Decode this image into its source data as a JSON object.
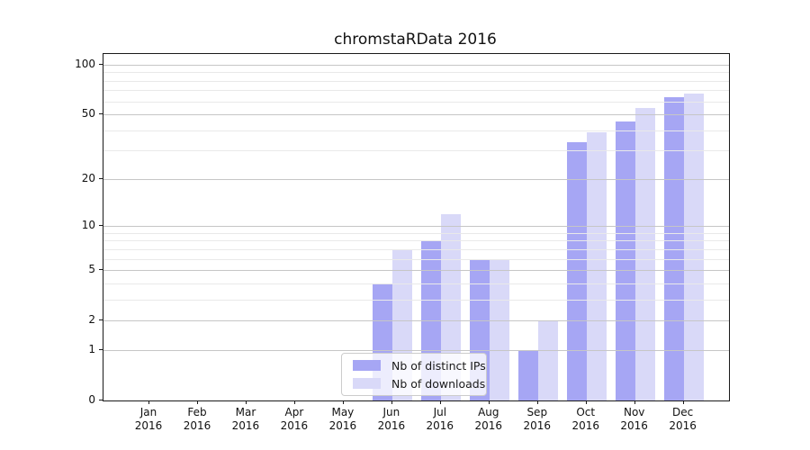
{
  "window": {
    "title": "chromstaRData 2016"
  },
  "chart_data": {
    "type": "bar",
    "title": "chromstaRData 2016",
    "xlabel": "",
    "ylabel": "",
    "year_label": "2016",
    "categories": [
      "Jan",
      "Feb",
      "Mar",
      "Apr",
      "May",
      "Jun",
      "Jul",
      "Aug",
      "Sep",
      "Oct",
      "Nov",
      "Dec"
    ],
    "series": [
      {
        "name": "Nb of distinct IPs",
        "color": "#a6a6f4",
        "values": [
          0,
          0,
          0,
          0,
          0,
          4,
          8,
          6,
          1,
          34,
          45,
          64
        ]
      },
      {
        "name": "Nb of downloads",
        "color": "#d9d9f8",
        "values": [
          0,
          0,
          0,
          0,
          0,
          7,
          12,
          6,
          2,
          39,
          55,
          67
        ]
      }
    ],
    "y_scale": "log1p",
    "y_ticks": [
      0,
      1,
      2,
      5,
      10,
      20,
      50,
      100
    ],
    "y_minor_ticks": [
      3,
      4,
      6,
      7,
      8,
      9,
      30,
      40,
      60,
      70,
      80,
      90
    ],
    "ylim": [
      0,
      116
    ],
    "grid": "on",
    "grid_above_bars": true,
    "legend_position": "lower-center"
  },
  "colors": {
    "bar_distinct_ips": "#a6a6f4",
    "bar_downloads": "#d9d9f8",
    "grid_major": "#c6c6c6",
    "grid_minor": "#e9e9e9",
    "spine": "#1a1a1a",
    "background": "#ffffff"
  }
}
